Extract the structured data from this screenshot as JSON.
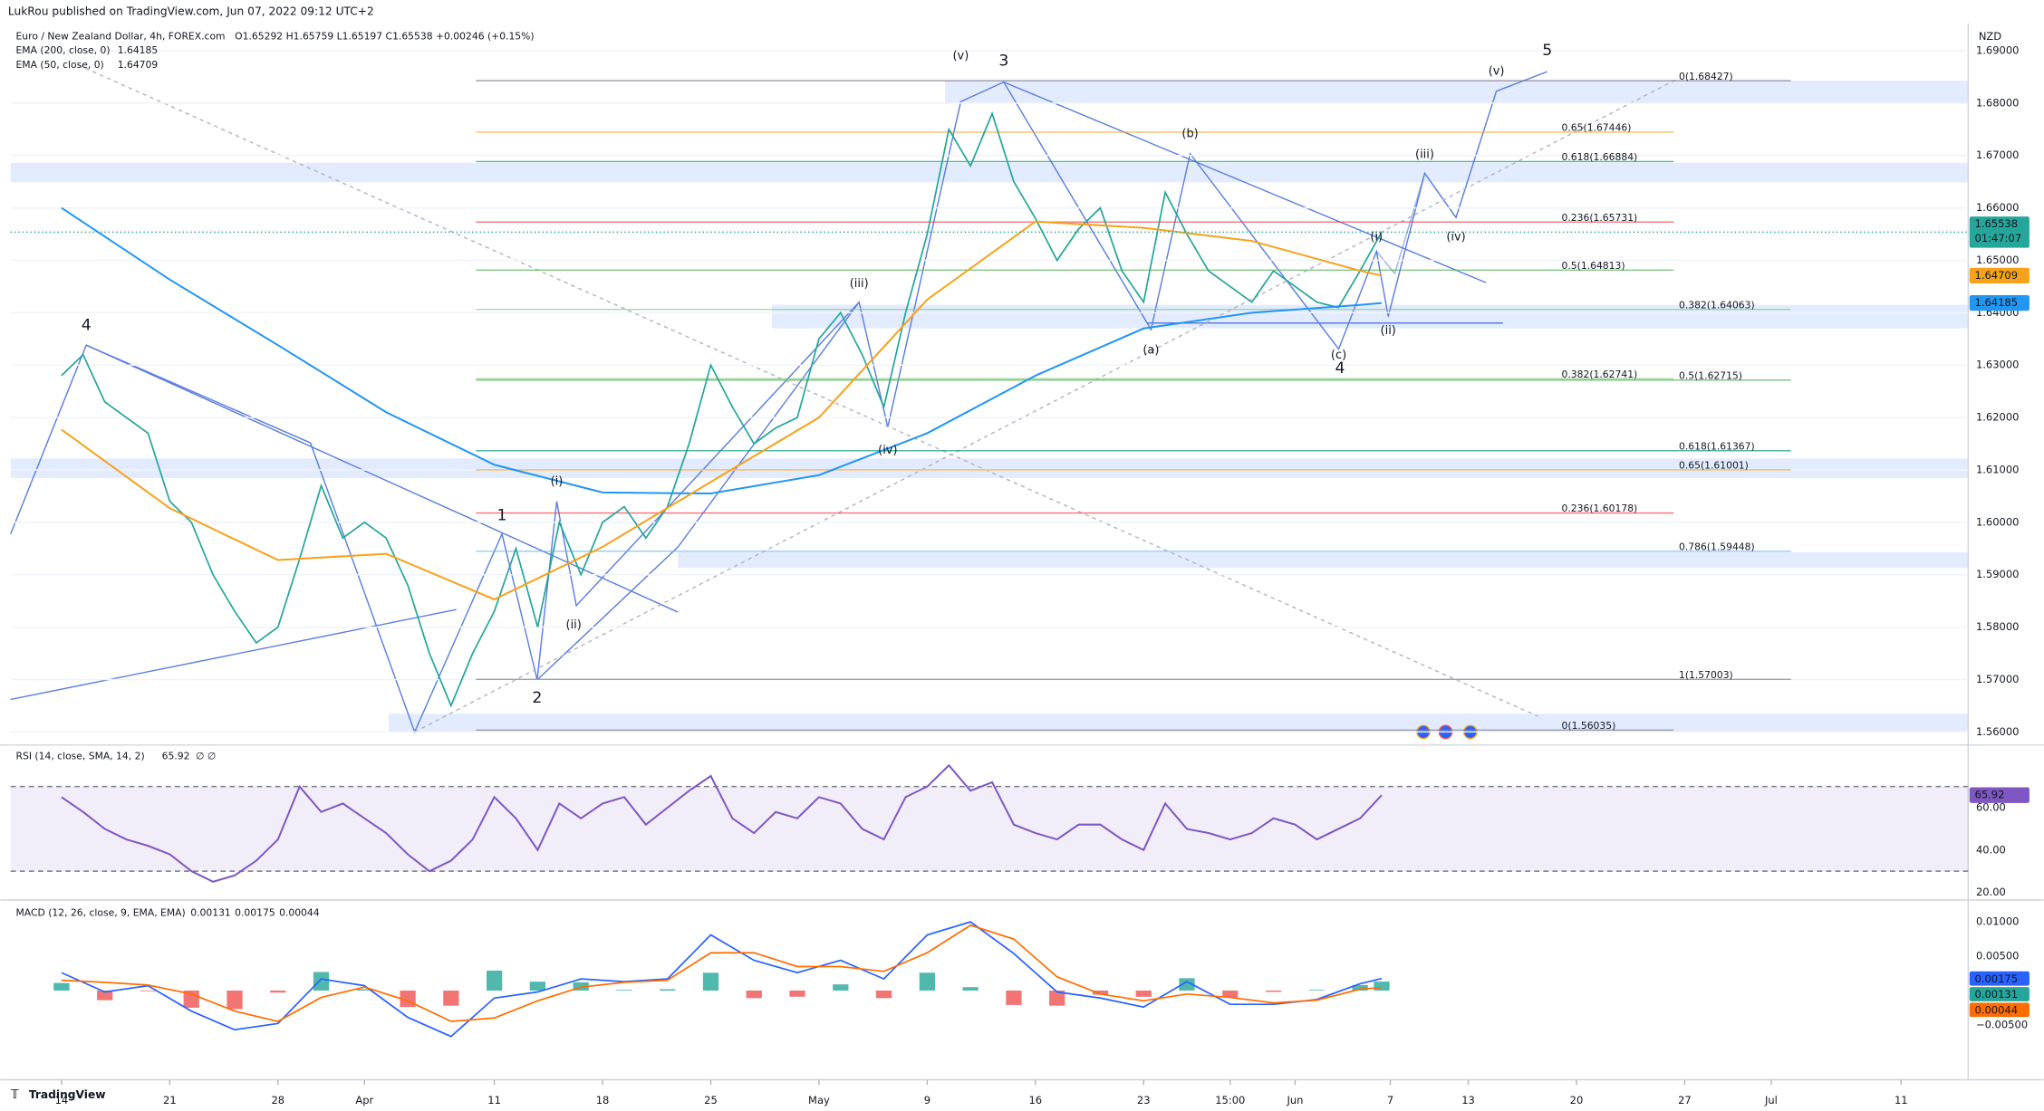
{
  "header": "LukRou published on TradingView.com, Jun 07, 2022 09:12 UTC+2",
  "footer": "TradingView",
  "chart_data": [
    {
      "type": "line",
      "title": "Euro / New Zealand Dollar, 4h, FOREX.com",
      "ohlc_text": "O1.65292 H1.65759 L1.65197 C1.65538 +0.00246 (+0.15%)",
      "currency": "NZD",
      "last_price_label": "1.65538",
      "countdown": "01:47:07",
      "x": [
        0,
        1,
        2,
        3,
        4,
        5,
        6,
        7,
        8,
        9,
        10,
        11,
        12,
        13,
        14,
        15,
        16,
        17,
        18,
        19,
        20,
        21,
        22,
        23,
        24,
        25,
        26,
        27,
        28,
        29,
        30,
        31,
        32,
        33,
        34,
        35,
        36,
        37,
        38,
        39,
        40,
        41,
        42,
        43,
        44,
        45,
        46,
        47,
        48,
        49,
        50,
        51,
        52,
        53,
        54,
        55,
        56,
        57,
        58,
        59,
        60,
        61
      ],
      "series": [
        {
          "color": "#26a69a",
          "values": [
            1.628,
            1.632,
            1.623,
            1.62,
            1.617,
            1.604,
            1.6,
            1.59,
            1.583,
            1.577,
            1.58,
            1.593,
            1.607,
            1.597,
            1.6,
            1.597,
            1.588,
            1.575,
            1.565,
            1.575,
            1.583,
            1.595,
            1.58,
            1.6,
            1.59,
            1.6,
            1.603,
            1.597,
            1.603,
            1.615,
            1.63,
            1.622,
            1.615,
            1.618,
            1.62,
            1.635,
            1.64,
            1.632,
            1.622,
            1.64,
            1.655,
            1.675,
            1.668,
            1.678,
            1.665,
            1.658,
            1.65,
            1.656,
            1.66,
            1.648,
            1.642,
            1.663,
            1.655,
            1.648,
            1.645,
            1.642,
            1.648,
            1.645,
            1.642,
            1.641,
            1.648,
            1.65538
          ]
        },
        {
          "name": "EMA (200, close, 0)",
          "color": "#2196f3",
          "value_label": "1.64185",
          "x": [
            0,
            5,
            10,
            15,
            20,
            25,
            30,
            35,
            40,
            45,
            50,
            55,
            60,
            61
          ],
          "values": [
            1.66,
            1.6463,
            1.6338,
            1.621,
            1.611,
            1.6057,
            1.6055,
            1.609,
            1.617,
            1.628,
            1.637,
            1.64,
            1.6415,
            1.64185
          ]
        },
        {
          "name": "EMA (50, close, 0)",
          "color": "#f7a21b",
          "value_label": "1.64709",
          "x": [
            0,
            5,
            10,
            15,
            20,
            25,
            30,
            35,
            40,
            45,
            50,
            55,
            60,
            61
          ],
          "values": [
            1.6177,
            1.6027,
            1.5928,
            1.594,
            1.5853,
            1.5953,
            1.6077,
            1.62,
            1.6425,
            1.6574,
            1.6562,
            1.6537,
            1.648,
            1.64709
          ]
        }
      ],
      "ylim": [
        1.558,
        1.6952
      ],
      "yticks": [
        {
          "value": 1.56,
          "label": "1.56000"
        },
        {
          "value": 1.57,
          "label": "1.57000"
        },
        {
          "value": 1.58,
          "label": "1.58000"
        },
        {
          "value": 1.59,
          "label": "1.59000"
        },
        {
          "value": 1.6,
          "label": "1.60000"
        },
        {
          "value": 1.61,
          "label": "1.61000"
        },
        {
          "value": 1.62,
          "label": "1.62000"
        },
        {
          "value": 1.63,
          "label": "1.63000"
        },
        {
          "value": 1.64,
          "label": "1.64000"
        },
        {
          "value": 1.65,
          "label": "1.65000"
        },
        {
          "value": 1.66,
          "label": "1.66000"
        },
        {
          "value": 1.67,
          "label": "1.67000"
        },
        {
          "value": 1.68,
          "label": "1.68000"
        },
        {
          "value": 1.69,
          "label": "1.69000"
        }
      ],
      "grid": true,
      "fib_sets": [
        [
          {
            "label": "0.65(1.67446)",
            "value": 1.67446,
            "color": "#f7a21b"
          },
          {
            "label": "0.618(1.66884)",
            "value": 1.66884,
            "color": "#089981"
          },
          {
            "label": "0.236(1.65731)",
            "value": 1.65731,
            "color": "#f23645"
          },
          {
            "label": "0.5(1.64813)",
            "value": 1.64813,
            "color": "#4caf50"
          },
          {
            "label": "0.382(1.62741)",
            "value": 1.62741,
            "color": "#81c784"
          },
          {
            "label": "0.236(1.60178)",
            "value": 1.60178,
            "color": "#f23645"
          },
          {
            "label": "0(1.56035)",
            "value": 1.56035,
            "color": "#787b86"
          }
        ],
        [
          {
            "label": "0(1.68427)",
            "value": 1.68427,
            "color": "#787b86"
          },
          {
            "label": "0.382(1.64063)",
            "value": 1.64063,
            "color": "#81c784"
          },
          {
            "label": "0.5(1.62715)",
            "value": 1.62715,
            "color": "#4caf50"
          },
          {
            "label": "0.618(1.61367)",
            "value": 1.61367,
            "color": "#089981"
          },
          {
            "label": "0.65(1.61001)",
            "value": 1.61001,
            "color": "#f7a21b"
          },
          {
            "label": "0.786(1.59448)",
            "value": 1.59448,
            "color": "#64b5f6"
          },
          {
            "label": "1(1.57003)",
            "value": 1.57003,
            "color": "#787b86"
          }
        ]
      ],
      "wave_labels": [
        "4",
        "1",
        "2",
        "(i)",
        "(ii)",
        "(iii)",
        "(iv)",
        "(v)",
        "3",
        "(a)",
        "(b)",
        "(c)",
        "4",
        "(i)",
        "(ii)",
        "(iii)",
        "(iv)",
        "(v)",
        "5"
      ]
    },
    {
      "type": "line",
      "title": "RSI (14, close, SMA, 14, 2)",
      "extra": "∅ ∅",
      "value_label": "65.92",
      "x": [
        0,
        1,
        2,
        3,
        4,
        5,
        6,
        7,
        8,
        9,
        10,
        11,
        12,
        13,
        14,
        15,
        16,
        17,
        18,
        19,
        20,
        21,
        22,
        23,
        24,
        25,
        26,
        27,
        28,
        29,
        30,
        31,
        32,
        33,
        34,
        35,
        36,
        37,
        38,
        39,
        40,
        41,
        42,
        43,
        44,
        45,
        46,
        47,
        48,
        49,
        50,
        51,
        52,
        53,
        54,
        55,
        56,
        57,
        58,
        59,
        60,
        61
      ],
      "series": [
        {
          "color": "#7e57c2",
          "values": [
            65,
            58,
            50,
            45,
            42,
            38,
            30,
            25,
            28,
            35,
            45,
            70,
            58,
            62,
            55,
            48,
            38,
            30,
            35,
            45,
            65,
            55,
            40,
            62,
            55,
            62,
            65,
            52,
            60,
            68,
            75,
            55,
            48,
            58,
            55,
            65,
            62,
            50,
            45,
            65,
            70,
            80,
            68,
            72,
            52,
            48,
            45,
            52,
            52,
            45,
            40,
            62,
            50,
            48,
            45,
            48,
            55,
            52,
            45,
            50,
            55,
            65.92
          ]
        }
      ],
      "band": [
        30,
        70
      ],
      "ylim": [
        17,
        89
      ],
      "yticks": [
        {
          "value": 20,
          "label": "20.00"
        },
        {
          "value": 40,
          "label": "40.00"
        },
        {
          "value": 60,
          "label": "60.00"
        }
      ]
    },
    {
      "type": "macd",
      "title": "MACD (12, 26, close, 9, EMA, EMA)",
      "x": [
        0,
        2,
        4,
        6,
        8,
        10,
        12,
        14,
        16,
        18,
        20,
        22,
        24,
        26,
        28,
        30,
        32,
        34,
        36,
        38,
        40,
        42,
        44,
        46,
        48,
        50,
        52,
        54,
        56,
        58,
        60,
        61
      ],
      "histogram": {
        "value_label": "0.00131",
        "up_color": "#26a69a",
        "down_color": "#ef5350",
        "values": [
          0.0011,
          -0.0014,
          -0.0001,
          -0.0025,
          -0.0027,
          -0.0003,
          0.0027,
          0.0002,
          -0.0024,
          -0.0022,
          0.0029,
          0.0013,
          0.0012,
          0.0001,
          0.0002,
          0.0026,
          -0.0011,
          -0.0009,
          0.0009,
          -0.0011,
          0.0026,
          0.0005,
          -0.0021,
          -0.0022,
          -0.0006,
          -0.0009,
          0.0018,
          -0.001,
          -0.0002,
          0.0001,
          0.0008,
          0.00131
        ]
      },
      "series": [
        {
          "color": "#2962ff",
          "value_label": "0.00175",
          "values": [
            0.0026,
            -0.0002,
            0.0007,
            -0.003,
            -0.0057,
            -0.0048,
            0.0017,
            0.0007,
            -0.0039,
            -0.0067,
            -0.0011,
            -0.0002,
            0.0017,
            0.0013,
            0.0017,
            0.0081,
            0.0044,
            0.0026,
            0.0044,
            0.0017,
            0.0081,
            0.01,
            0.0054,
            -0.0002,
            -0.0011,
            -0.0024,
            0.0013,
            -0.002,
            -0.002,
            -0.0013,
            0.001,
            0.00175
          ]
        },
        {
          "color": "#ff6d00",
          "value_label": "0.00044",
          "values": [
            0.0015,
            0.0012,
            0.0008,
            -0.0005,
            -0.003,
            -0.0045,
            -0.001,
            0.0005,
            -0.0015,
            -0.0045,
            -0.004,
            -0.0015,
            0.0005,
            0.0012,
            0.0015,
            0.0055,
            0.0055,
            0.0035,
            0.0035,
            0.0028,
            0.0055,
            0.0095,
            0.0075,
            0.002,
            -0.0005,
            -0.0015,
            -0.0005,
            -0.001,
            -0.0018,
            -0.0014,
            0.0002,
            0.00044
          ]
        }
      ],
      "ylim": [
        -0.0128,
        0.013
      ],
      "yticks": [
        {
          "value": -0.005,
          "label": "−0.00500"
        },
        {
          "value": 0.005,
          "label": "0.00500"
        },
        {
          "value": 0.01,
          "label": "0.01000"
        }
      ],
      "xlim": [
        -2.35,
        88.1
      ],
      "xticks": [
        {
          "value": 0,
          "label": "14"
        },
        {
          "value": 5,
          "label": "21"
        },
        {
          "value": 10,
          "label": "28"
        },
        {
          "value": 14,
          "label": "Apr"
        },
        {
          "value": 20,
          "label": "11"
        },
        {
          "value": 25,
          "label": "18"
        },
        {
          "value": 30,
          "label": "25"
        },
        {
          "value": 35,
          "label": "May"
        },
        {
          "value": 40,
          "label": "9"
        },
        {
          "value": 45,
          "label": "16"
        },
        {
          "value": 50,
          "label": "23"
        },
        {
          "value": 54,
          "label": "15:00"
        },
        {
          "value": 57,
          "label": "Jun"
        },
        {
          "value": 61.4,
          "label": "7"
        },
        {
          "value": 65,
          "label": "13"
        },
        {
          "value": 70,
          "label": "20"
        },
        {
          "value": 75,
          "label": "27"
        },
        {
          "value": 79,
          "label": "Jul"
        },
        {
          "value": 85,
          "label": "11"
        }
      ]
    }
  ]
}
